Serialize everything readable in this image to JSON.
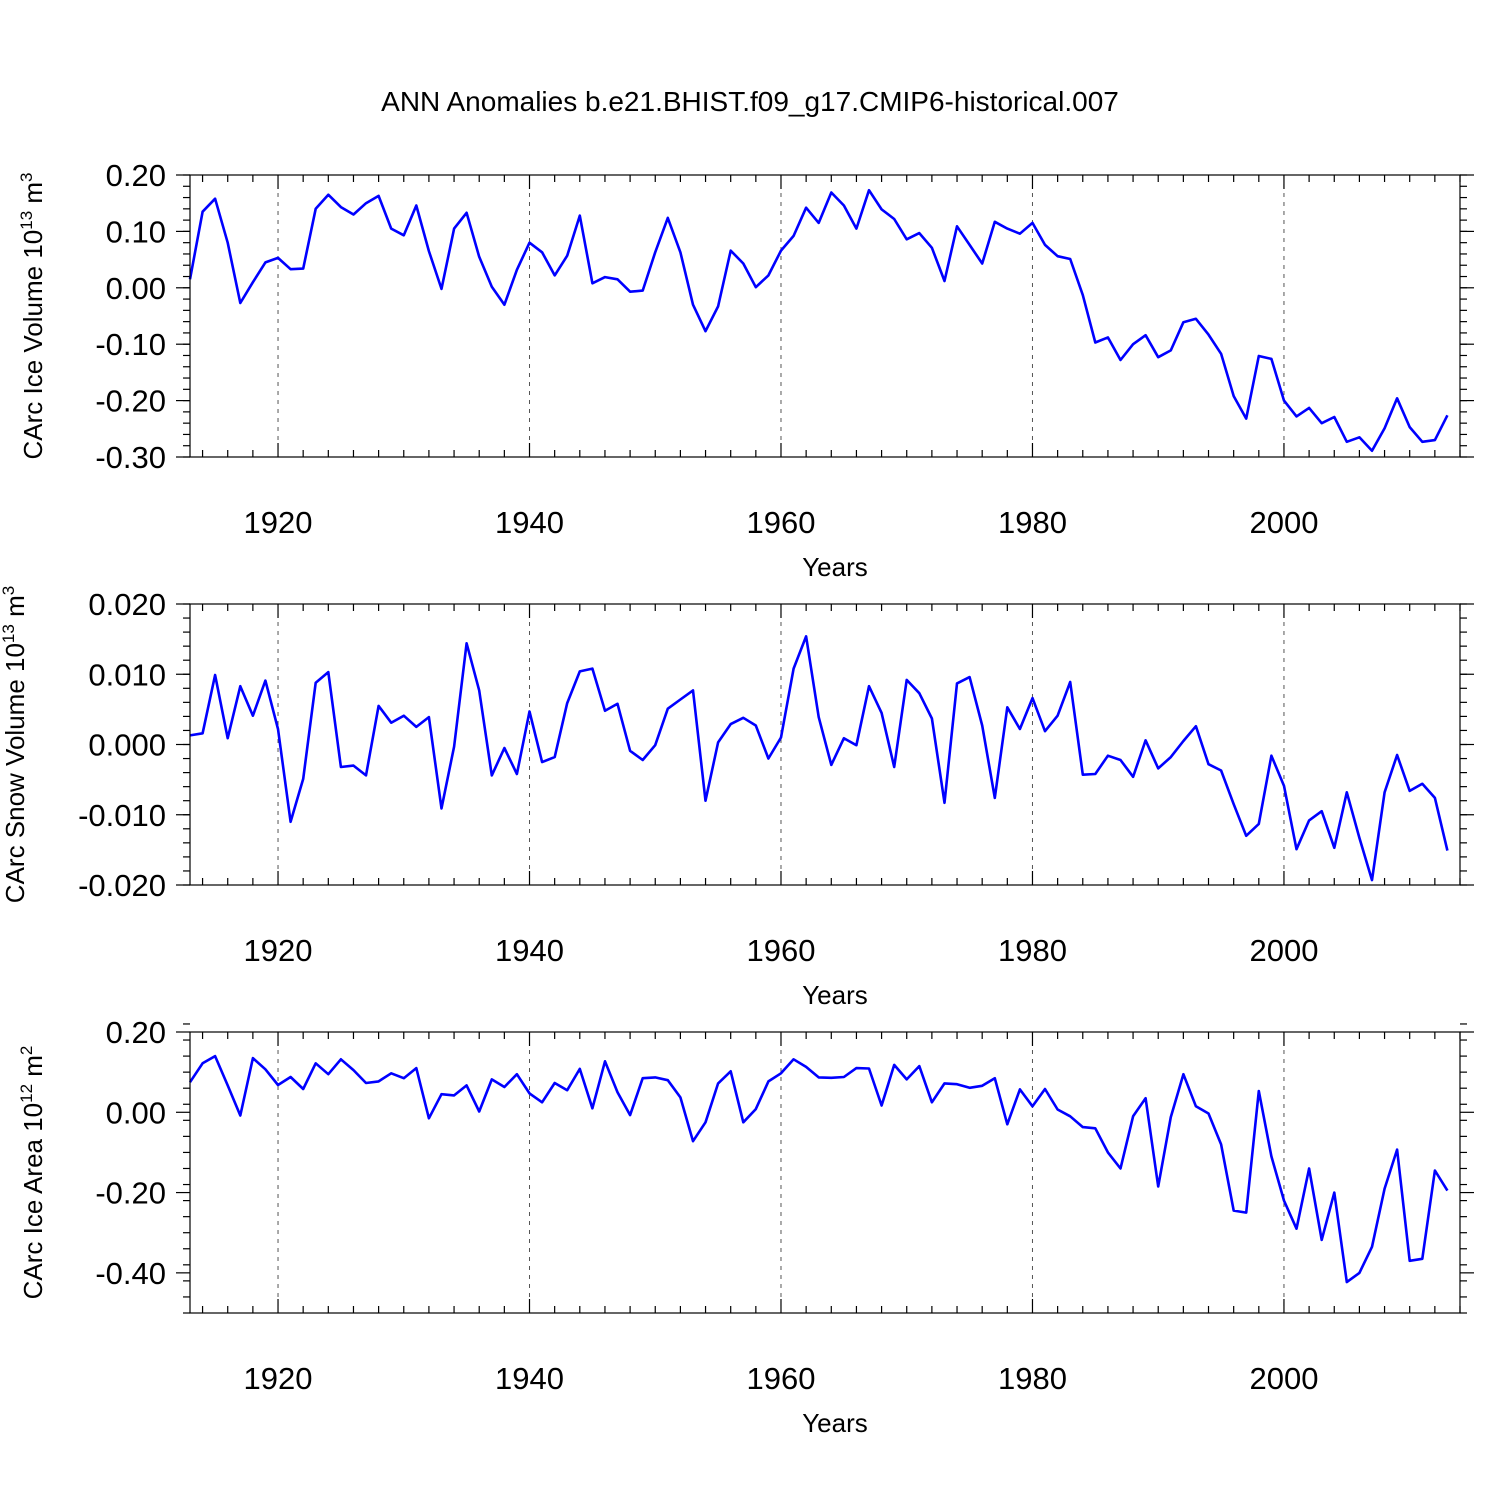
{
  "title": "ANN Anomalies b.e21.BHIST.f09_g17.CMIP6-historical.007",
  "chart_data": [
    {
      "type": "line",
      "ylabel_main": "CArc Ice Volume 10",
      "ylabel_exp": "13",
      "ylabel_unit": " m",
      "ylabel_unit_exp": "3",
      "xlabel": "Years",
      "xlim": [
        1913,
        2014
      ],
      "ylim": [
        -0.3,
        0.2
      ],
      "yticks": [
        0.2,
        0.1,
        0.0,
        -0.1,
        -0.2,
        -0.3
      ],
      "ytick_labels": [
        "0.20",
        "0.10",
        "0.00",
        "-0.10",
        "-0.20",
        "-0.30"
      ],
      "xticks": [
        1920,
        1940,
        1960,
        1980,
        2000
      ],
      "xtick_labels": [
        "1920",
        "1940",
        "1960",
        "1980",
        "2000"
      ],
      "grid_x": true,
      "color": "#0000ff",
      "x_start": 1913,
      "values": [
        0.015,
        0.135,
        0.158,
        0.08,
        -0.027,
        0.01,
        0.045,
        0.053,
        0.033,
        0.034,
        0.14,
        0.165,
        0.143,
        0.13,
        0.15,
        0.163,
        0.105,
        0.093,
        0.146,
        0.065,
        -0.002,
        0.105,
        0.133,
        0.055,
        0.002,
        -0.03,
        0.032,
        0.08,
        0.063,
        0.022,
        0.057,
        0.128,
        0.008,
        0.019,
        0.015,
        -0.007,
        -0.005,
        0.063,
        0.124,
        0.063,
        -0.03,
        -0.077,
        -0.033,
        0.066,
        0.043,
        0.001,
        0.022,
        0.066,
        0.092,
        0.142,
        0.115,
        0.169,
        0.146,
        0.105,
        0.173,
        0.139,
        0.122,
        0.086,
        0.097,
        0.071,
        0.012,
        0.109,
        0.076,
        0.043,
        0.117,
        0.105,
        0.096,
        0.115,
        0.076,
        0.056,
        0.051,
        -0.013,
        -0.097,
        -0.088,
        -0.128,
        -0.1,
        -0.084,
        -0.123,
        -0.111,
        -0.061,
        -0.055,
        -0.083,
        -0.117,
        -0.192,
        -0.232,
        -0.121,
        -0.126,
        -0.2,
        -0.228,
        -0.213,
        -0.24,
        -0.229,
        -0.273,
        -0.265,
        -0.289,
        -0.249,
        -0.196,
        -0.247,
        -0.273,
        -0.27,
        -0.226
      ]
    },
    {
      "type": "line",
      "ylabel_main": "CArc Snow Volume 10",
      "ylabel_exp": "13",
      "ylabel_unit": " m",
      "ylabel_unit_exp": "3",
      "xlabel": "Years",
      "xlim": [
        1913,
        2014
      ],
      "ylim": [
        -0.02,
        0.02
      ],
      "yticks": [
        0.02,
        0.01,
        0.0,
        -0.01,
        -0.02
      ],
      "ytick_labels": [
        "0.020",
        "0.010",
        "0.000",
        "-0.010",
        "-0.020"
      ],
      "xticks": [
        1920,
        1940,
        1960,
        1980,
        2000
      ],
      "xtick_labels": [
        "1920",
        "1940",
        "1960",
        "1980",
        "2000"
      ],
      "grid_x": true,
      "color": "#0000ff",
      "x_start": 1913,
      "values": [
        0.0013,
        0.0016,
        0.0099,
        0.0009,
        0.0083,
        0.0041,
        0.0091,
        0.0022,
        -0.011,
        -0.0049,
        0.0088,
        0.0103,
        -0.0032,
        -0.003,
        -0.0044,
        0.0055,
        0.0031,
        0.0041,
        0.0025,
        0.0039,
        -0.0091,
        -0.0003,
        0.0144,
        0.0077,
        -0.0044,
        -0.0005,
        -0.0042,
        0.0047,
        -0.0025,
        -0.0018,
        0.0059,
        0.0104,
        0.0108,
        0.0048,
        0.0058,
        -0.0009,
        -0.0022,
        -0.0001,
        0.0051,
        0.0064,
        0.0077,
        -0.008,
        0.0003,
        0.0029,
        0.0038,
        0.0027,
        -0.002,
        0.001,
        0.0108,
        0.0154,
        0.0039,
        -0.0029,
        0.0009,
        -0.0001,
        0.0083,
        0.0045,
        -0.0032,
        0.0092,
        0.0073,
        0.0037,
        -0.0083,
        0.0087,
        0.0096,
        0.0027,
        -0.0076,
        0.0053,
        0.0022,
        0.0066,
        0.0019,
        0.0041,
        0.0089,
        -0.0043,
        -0.0042,
        -0.0016,
        -0.0022,
        -0.0046,
        0.0006,
        -0.0034,
        -0.0018,
        0.0005,
        0.0026,
        -0.0028,
        -0.0037,
        -0.0085,
        -0.013,
        -0.0113,
        -0.0016,
        -0.0059,
        -0.0149,
        -0.0108,
        -0.0095,
        -0.0147,
        -0.0068,
        -0.0133,
        -0.0193,
        -0.0068,
        -0.0015,
        -0.0066,
        -0.0056,
        -0.0076,
        -0.0151
      ]
    },
    {
      "type": "line",
      "ylabel_main": "CArc Ice Area 10",
      "ylabel_exp": "12",
      "ylabel_unit": " m",
      "ylabel_unit_exp": "2",
      "xlabel": "Years",
      "xlim": [
        1913,
        2014
      ],
      "ylim": [
        -0.5,
        0.2
      ],
      "yticks": [
        0.2,
        0.0,
        -0.2,
        -0.4
      ],
      "ytick_labels": [
        "0.20",
        "0.00",
        "-0.20",
        "-0.40"
      ],
      "xticks": [
        1920,
        1940,
        1960,
        1980,
        2000
      ],
      "xtick_labels": [
        "1920",
        "1940",
        "1960",
        "1980",
        "2000"
      ],
      "grid_x": true,
      "color": "#0000ff",
      "x_start": 1913,
      "values": [
        0.075,
        0.122,
        0.14,
        0.067,
        -0.008,
        0.135,
        0.107,
        0.068,
        0.088,
        0.058,
        0.122,
        0.095,
        0.132,
        0.105,
        0.073,
        0.077,
        0.097,
        0.085,
        0.11,
        -0.015,
        0.045,
        0.042,
        0.067,
        0.002,
        0.082,
        0.063,
        0.095,
        0.047,
        0.025,
        0.073,
        0.055,
        0.108,
        0.01,
        0.127,
        0.05,
        -0.007,
        0.085,
        0.087,
        0.08,
        0.037,
        -0.072,
        -0.025,
        0.072,
        0.102,
        -0.025,
        0.008,
        0.077,
        0.097,
        0.132,
        0.113,
        0.087,
        0.086,
        0.088,
        0.11,
        0.109,
        0.017,
        0.118,
        0.082,
        0.115,
        0.025,
        0.072,
        0.07,
        0.061,
        0.066,
        0.085,
        -0.03,
        0.057,
        0.015,
        0.058,
        0.007,
        -0.01,
        -0.037,
        -0.04,
        -0.1,
        -0.14,
        -0.01,
        0.035,
        -0.185,
        -0.012,
        0.095,
        0.015,
        -0.003,
        -0.08,
        -0.245,
        -0.25,
        0.053,
        -0.11,
        -0.22,
        -0.29,
        -0.14,
        -0.318,
        -0.2,
        -0.423,
        -0.4,
        -0.335,
        -0.19,
        -0.093,
        -0.37,
        -0.365,
        -0.145,
        -0.195
      ]
    }
  ]
}
